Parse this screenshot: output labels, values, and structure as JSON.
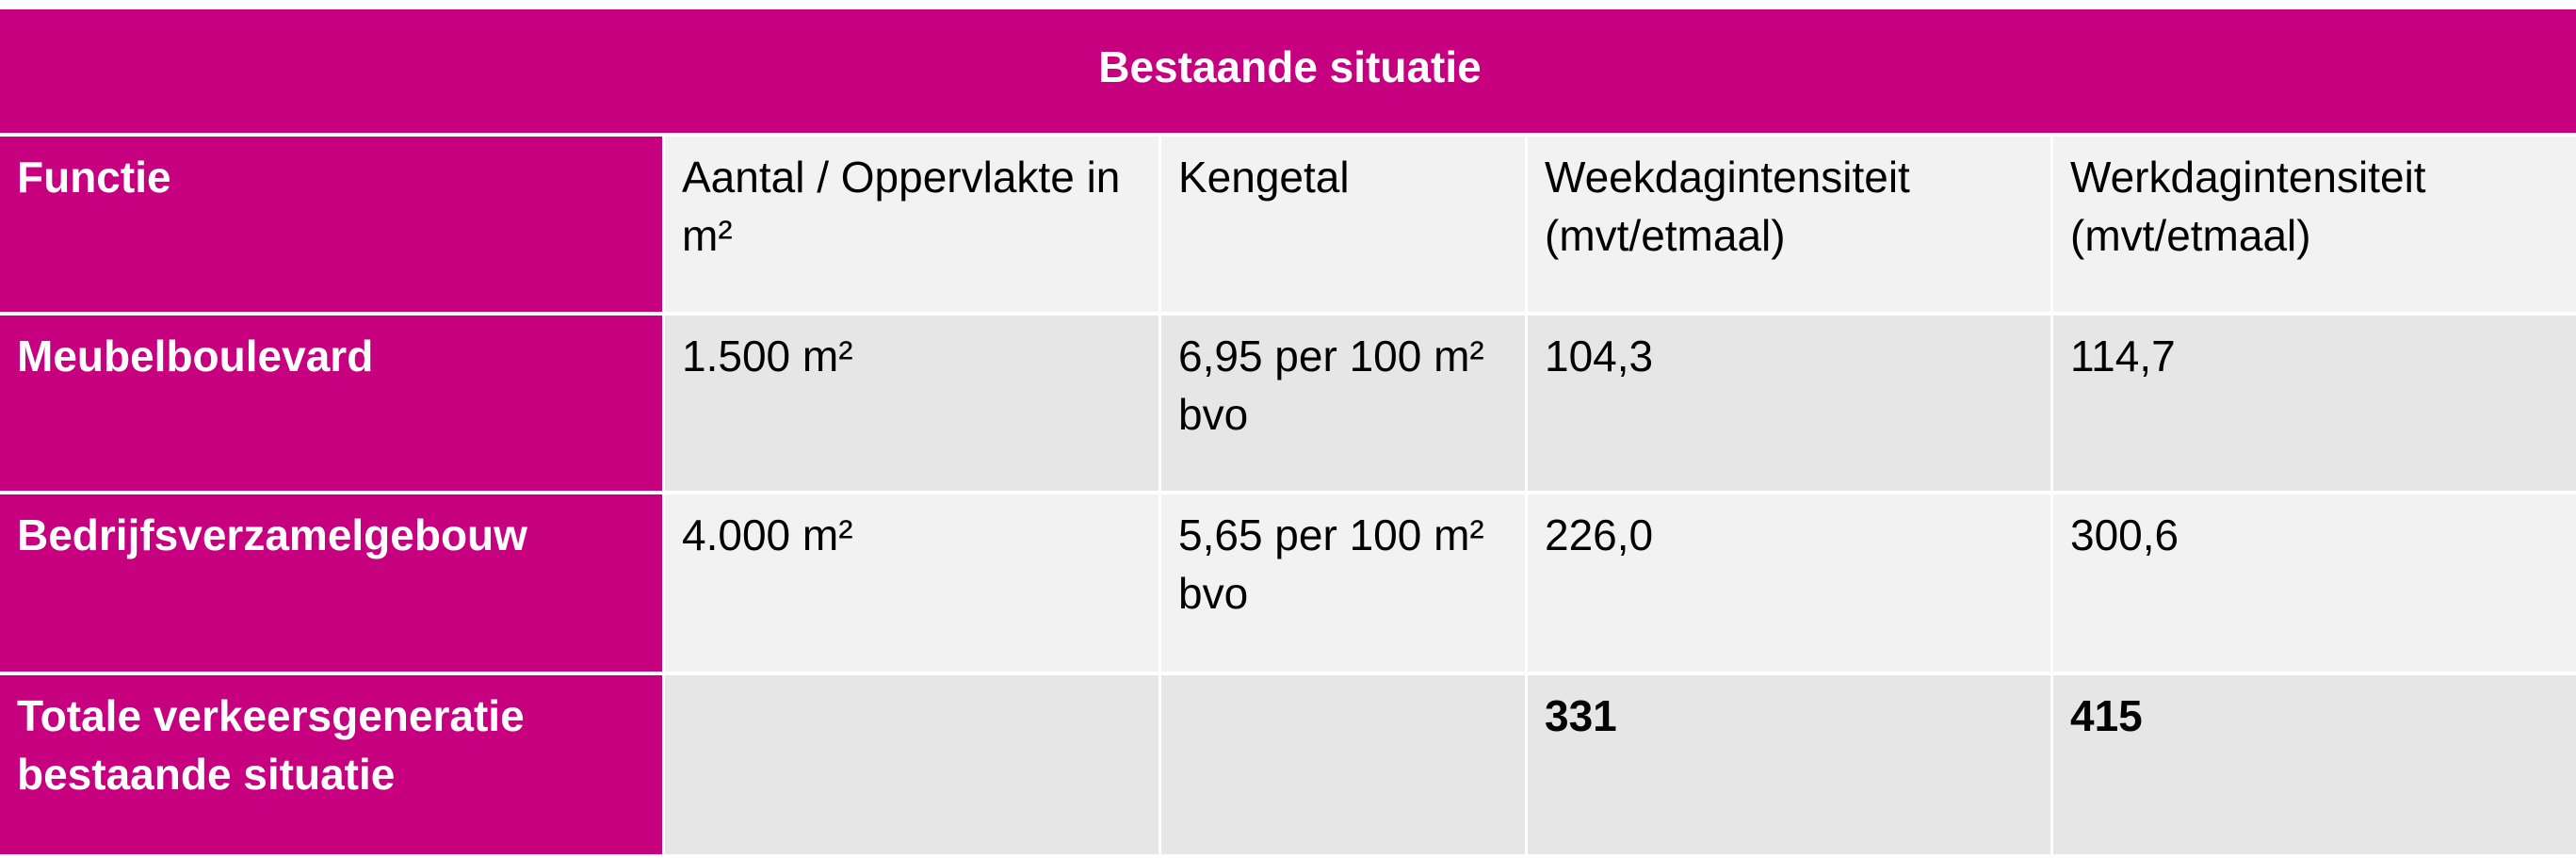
{
  "table": {
    "title": "Bestaande situatie",
    "header": [
      "Functie",
      "Aantal / Oppervlakte in m²",
      "Kengetal",
      "Weekdagintensiteit (mvt/etmaal)",
      "Werkdagintensiteit (mvt/etmaal)"
    ],
    "rows": [
      [
        "Meubelboulevard",
        "1.500 m²",
        "6,95 per 100 m² bvo",
        "104,3",
        "114,7"
      ],
      [
        "Bedrijfsverzamelgebouw",
        "4.000 m²",
        "5,65 per 100 m² bvo",
        "226,0",
        "300,6"
      ],
      [
        "Totale verkeersgeneratie bestaande situatie",
        null,
        null,
        "331",
        "415"
      ]
    ]
  }
}
